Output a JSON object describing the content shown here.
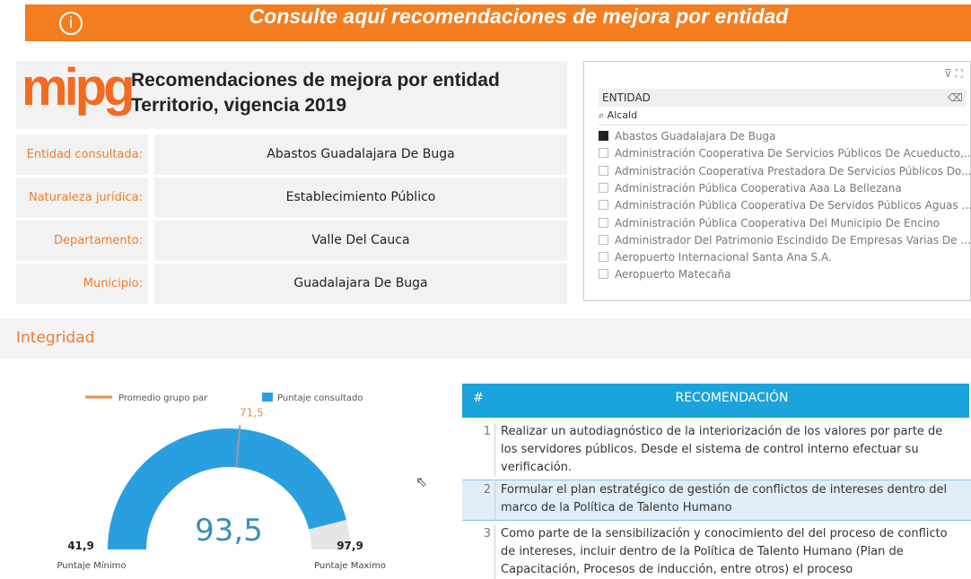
{
  "banner": {
    "icon": "i",
    "title": "Consulte aquí recomendaciones de mejora por entidad"
  },
  "header": {
    "logo": "mipg",
    "title": "Recomendaciones de mejora por entidad",
    "subtitle": "Territorio, vigencia 2019"
  },
  "fields": [
    {
      "label": "Entidad consultada:",
      "value": "Abastos Guadalajara De Buga"
    },
    {
      "label": "Naturaleza jurídica:",
      "value": "Establecimiento Público"
    },
    {
      "label": "Departamento:",
      "value": "Valle Del Cauca"
    },
    {
      "label": "Municipio:",
      "value": "Guadalajara De Buga"
    }
  ],
  "slicer": {
    "title": "ENTIDAD",
    "search": "Alcald",
    "items": [
      {
        "label": "Abastos Guadalajara De Buga",
        "checked": true
      },
      {
        "label": "Administración Cooperativa De Servicios Públicos De Acueducto,...",
        "checked": false
      },
      {
        "label": "Administración Cooperativa Prestadora De Servicios Públicos Do...",
        "checked": false
      },
      {
        "label": "Administración Pública Cooperativa Aaa La Bellezana",
        "checked": false
      },
      {
        "label": "Administración Pública Cooperativa De Servidos Públicos Aguas ...",
        "checked": false
      },
      {
        "label": "Administración Pública Cooperativa Del Municipio De Encino",
        "checked": false
      },
      {
        "label": "Administrador Del Patrimonio Escindido De Empresas Varias De ...",
        "checked": false
      },
      {
        "label": "Aeropuerto Internacional Santa Ana S.A.",
        "checked": false
      },
      {
        "label": "Aeropuerto Matecaña",
        "checked": false
      }
    ]
  },
  "section": {
    "title": "Integridad"
  },
  "chart_data": {
    "type": "gauge",
    "series": [
      {
        "name": "Promedio grupo par",
        "color": "#e8904a",
        "values": [
          71.5
        ],
        "value_labels": [
          "71,5"
        ]
      },
      {
        "name": "Puntaje consultado",
        "color": "#2a9fe0",
        "values": [
          93.5
        ],
        "value_labels": [
          "93,5"
        ]
      }
    ],
    "ylim": [
      41.9,
      97.9
    ],
    "yticks": [
      {
        "value": 41.9,
        "label": "41,9"
      },
      {
        "value": 97.9,
        "label": "97,9"
      }
    ],
    "axis_labels": [
      "Puntaje Mínimo",
      "Puntaje Maximo"
    ]
  },
  "table": {
    "columns": [
      "#",
      "RECOMENDACIÓN"
    ],
    "rows": [
      [
        "1",
        "Realizar un autodiagnóstico de la interiorización de los valores por parte de los servidores públicos. Desde el sistema de control interno efectuar su verificación."
      ],
      [
        "2",
        "Formular el plan estratégico de gestión de conflictos de intereses dentro del marco de la Política de Talento Humano"
      ],
      [
        "3",
        "Como parte de la sensibilización y conocimiento del del proceso de conflicto de intereses, incluir dentro de la Política de Talento Humano (Plan de Capacitación, Procesos de inducción, entre otros) el proceso"
      ]
    ]
  }
}
